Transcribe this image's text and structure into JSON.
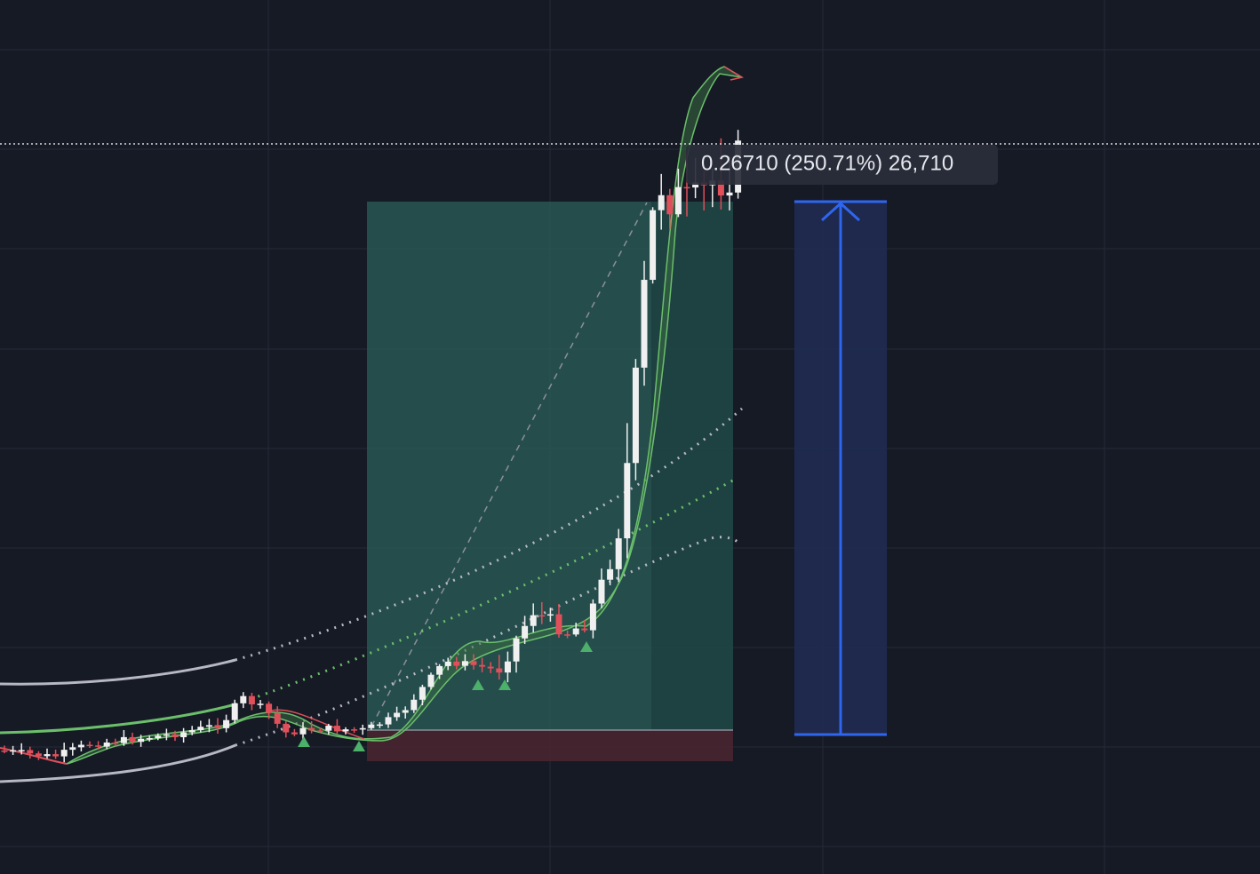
{
  "measure_label": "0.26710 (250.71%) 26,710"
}
